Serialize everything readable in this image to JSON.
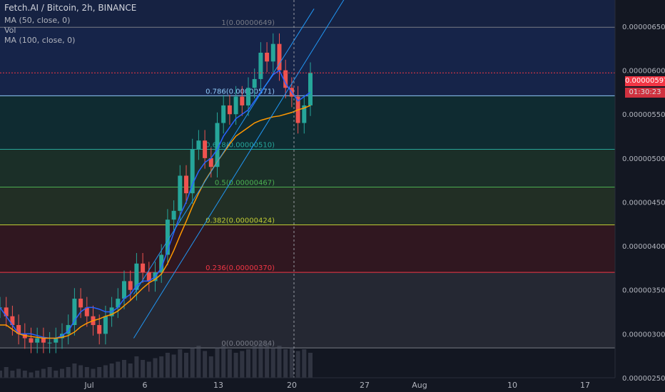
{
  "header": {
    "title": "Fetch.AI / Bitcoin, 2h, BINANCE",
    "indicators": [
      "MA (50, close, 0)",
      "Vol",
      "MA (100, close, 0)"
    ]
  },
  "colors": {
    "background": "#131722",
    "ma50": "#2962ff",
    "ma100": "#ff9800",
    "channel": "#2196f3",
    "price_line": "#f23645"
  },
  "last_price": "0.00000597",
  "countdown": "01:30:23",
  "chart_data": {
    "type": "candlestick",
    "title": "Fetch.AI / Bitcoin, 2h, BINANCE",
    "ylim": [
      2.5e-06,
      6.8e-06
    ],
    "y_ticks": [
      "0.00000650",
      "0.00000600",
      "0.00000550",
      "0.00000500",
      "0.00000450",
      "0.00000400",
      "0.00000350",
      "0.00000300",
      "0.00000250"
    ],
    "x_ticks": [
      "Jul",
      "6",
      "13",
      "20",
      "27",
      "Aug",
      "10",
      "17"
    ],
    "fib_levels": [
      {
        "ratio": "1",
        "price": "0.00000649",
        "label": "1(0.00000649)",
        "color": "#787b86",
        "zone_color": "#787b86"
      },
      {
        "ratio": "0.786",
        "price": "0.00000571",
        "label": "0.786(0.00000571)",
        "color": "#90caf9",
        "zone_color": "#2962ff"
      },
      {
        "ratio": "0.618",
        "price": "0.00000510",
        "label": "0.618(0.00000510)",
        "color": "#26a69a",
        "zone_color": "#00897b"
      },
      {
        "ratio": "0.5",
        "price": "0.00000467",
        "label": "0.5(0.00000467)",
        "color": "#4caf50",
        "zone_color": "#43a047"
      },
      {
        "ratio": "0.382",
        "price": "0.00000424",
        "label": "0.382(0.00000424)",
        "color": "#c0ca33",
        "zone_color": "#689f38"
      },
      {
        "ratio": "0.236",
        "price": "0.00000370",
        "label": "0.236(0.00000370)",
        "color": "#f23645",
        "zone_color": "#b71c1c"
      },
      {
        "ratio": "0",
        "price": "0.00000284",
        "label": "0(0.00000284)",
        "color": "#787b86",
        "zone_color": "#787b86"
      }
    ],
    "price_closes": [
      3.3,
      3.2,
      3.1,
      3.0,
      2.95,
      2.9,
      2.95,
      2.9,
      2.9,
      2.95,
      3.0,
      3.1,
      3.4,
      3.3,
      3.2,
      3.1,
      3.0,
      3.2,
      3.3,
      3.4,
      3.6,
      3.5,
      3.8,
      3.7,
      3.6,
      3.7,
      3.9,
      4.3,
      4.4,
      4.8,
      4.6,
      5.1,
      5.2,
      5.0,
      4.9,
      5.4,
      5.6,
      5.5,
      5.7,
      5.6,
      5.8,
      5.9,
      6.2,
      6.1,
      6.3,
      6.0,
      5.8,
      5.7,
      5.4,
      5.6,
      5.97
    ],
    "ma50_values": [
      3.3,
      3.2,
      3.1,
      3.0,
      3.0,
      3.0,
      2.98,
      2.96,
      2.95,
      2.95,
      2.98,
      3.03,
      3.15,
      3.25,
      3.3,
      3.3,
      3.28,
      3.25,
      3.25,
      3.3,
      3.4,
      3.45,
      3.55,
      3.6,
      3.6,
      3.65,
      3.75,
      3.95,
      4.15,
      4.35,
      4.5,
      4.7,
      4.85,
      4.95,
      5.0,
      5.1,
      5.25,
      5.35,
      5.45,
      5.5,
      5.55,
      5.65,
      5.75,
      5.85,
      5.95,
      6.0,
      5.85,
      5.75,
      5.65,
      5.7,
      5.75
    ],
    "ma100_values": [
      3.1,
      3.1,
      3.05,
      3.0,
      2.98,
      2.97,
      2.96,
      2.95,
      2.95,
      2.95,
      2.96,
      2.98,
      3.02,
      3.08,
      3.12,
      3.15,
      3.17,
      3.2,
      3.22,
      3.26,
      3.32,
      3.38,
      3.45,
      3.52,
      3.58,
      3.62,
      3.68,
      3.8,
      3.95,
      4.12,
      4.28,
      4.45,
      4.6,
      4.74,
      4.85,
      4.96,
      5.06,
      5.16,
      5.25,
      5.3,
      5.35,
      5.4,
      5.43,
      5.45,
      5.47,
      5.48,
      5.5,
      5.52,
      5.55,
      5.57,
      5.6
    ],
    "volume_values": [
      0.2,
      0.3,
      0.2,
      0.25,
      0.2,
      0.15,
      0.2,
      0.25,
      0.3,
      0.2,
      0.25,
      0.3,
      0.4,
      0.35,
      0.3,
      0.25,
      0.3,
      0.35,
      0.4,
      0.45,
      0.5,
      0.4,
      0.6,
      0.5,
      0.45,
      0.55,
      0.6,
      0.7,
      0.65,
      0.8,
      0.7,
      0.85,
      0.9,
      0.75,
      0.6,
      0.85,
      0.9,
      0.8,
      0.7,
      0.75,
      0.8,
      0.9,
      1.0,
      0.95,
      0.85,
      0.9,
      0.8,
      0.85,
      0.75,
      0.8,
      0.7
    ],
    "channel": {
      "upper_start": [
        3.45,
        5
      ],
      "upper_end": [
        6.7,
        21.2
      ],
      "lower_start": [
        2.95,
        5
      ],
      "lower_end": [
        6.95,
        24.6
      ]
    },
    "current_date_marker": "20",
    "series": [
      {
        "name": "MA (50, close, 0)",
        "color": "#2962ff"
      },
      {
        "name": "MA (100, close, 0)",
        "color": "#ff9800"
      },
      {
        "name": "Vol",
        "color": "#4d5160"
      }
    ]
  }
}
